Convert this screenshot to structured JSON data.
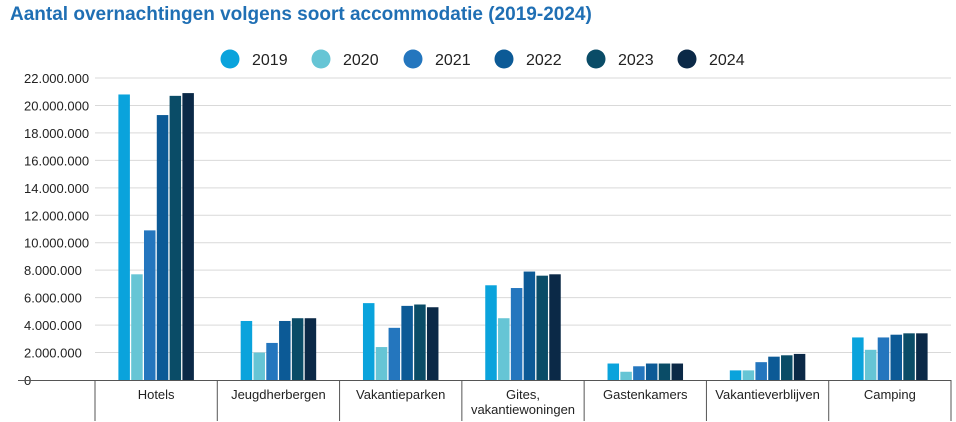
{
  "chart_data": {
    "type": "bar",
    "title": "Aantal overnachtingen volgens soort accommodatie (2019-2024)",
    "xlabel": "",
    "ylabel": "",
    "ylim": [
      0,
      22000000
    ],
    "y_ticks": [
      "0",
      "2.000.000",
      "4.000.000",
      "6.000.000",
      "8.000.000",
      "10.000.000",
      "12.000.000",
      "14.000.000",
      "16.000.000",
      "18.000.000",
      "20.000.000",
      "22.000.000"
    ],
    "y_tick_values": [
      0,
      2000000,
      4000000,
      6000000,
      8000000,
      10000000,
      12000000,
      14000000,
      16000000,
      18000000,
      20000000,
      22000000
    ],
    "grid": true,
    "legend_position": "top",
    "categories": [
      [
        "Hotels"
      ],
      [
        "Jeugdherbergen"
      ],
      [
        "Vakantieparken"
      ],
      [
        "Gites,",
        "vakantiewoningen"
      ],
      [
        "Gastenkamers"
      ],
      [
        "Vakantieverblijven"
      ],
      [
        "Camping"
      ]
    ],
    "series": [
      {
        "name": "2019",
        "color": "#0aa3dc",
        "values": [
          20800000,
          4300000,
          5600000,
          6900000,
          1200000,
          700000,
          3100000
        ]
      },
      {
        "name": "2020",
        "color": "#66c5d5",
        "values": [
          7700000,
          2000000,
          2400000,
          4500000,
          600000,
          700000,
          2200000
        ]
      },
      {
        "name": "2021",
        "color": "#2476be",
        "values": [
          10900000,
          2700000,
          3800000,
          6700000,
          1000000,
          1300000,
          3100000
        ]
      },
      {
        "name": "2022",
        "color": "#0c5a96",
        "values": [
          19300000,
          4300000,
          5400000,
          7900000,
          1200000,
          1700000,
          3300000
        ]
      },
      {
        "name": "2023",
        "color": "#0a4c67",
        "values": [
          20700000,
          4500000,
          5500000,
          7600000,
          1200000,
          1800000,
          3400000
        ]
      },
      {
        "name": "2024",
        "color": "#0b2947",
        "values": [
          20900000,
          4500000,
          5300000,
          7700000,
          1200000,
          1900000,
          3400000
        ]
      }
    ]
  }
}
